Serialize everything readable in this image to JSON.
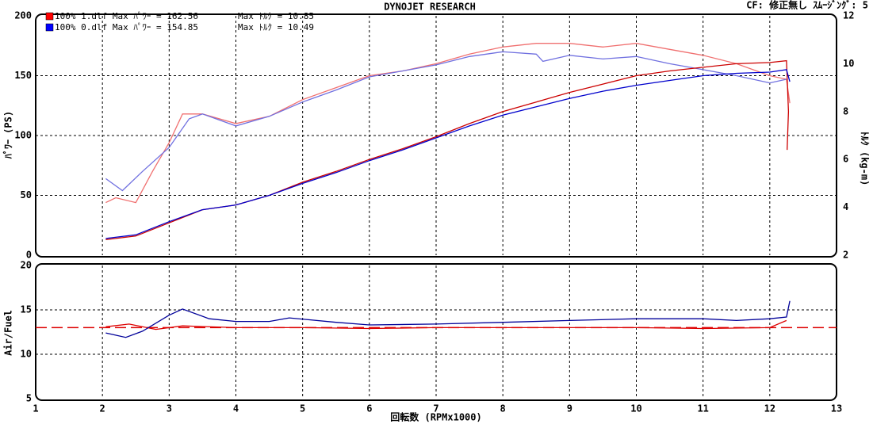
{
  "chart_data": [
    {
      "type": "line",
      "title": "DYNOJET  RESEARCH",
      "subtitle": "CF: 修正無し  ｽﾑｰｼﾞﾝｸﾞ: 5",
      "y_label": "ﾊﾟﾜｰ (PS)",
      "y2_label": "ﾄﾙｸ (kg-m)",
      "legend": [
        {
          "color": "#ff0000",
          "text": "100% 1.dlf Max ﾊﾟﾜｰ = 162.56",
          "text2": "Max ﾄﾙｸ = 10.85"
        },
        {
          "color": "#0000ff",
          "text": "100% 0.dlf Max ﾊﾟﾜｰ = 154.85",
          "text2": "Max ﾄﾙｸ = 10.49"
        }
      ],
      "xlim": [
        1,
        13
      ],
      "xticks": [
        1,
        2,
        3,
        4,
        5,
        6,
        7,
        8,
        9,
        10,
        11,
        12,
        13
      ],
      "ylim": [
        0,
        200
      ],
      "yticks": [
        0,
        50,
        100,
        150,
        200
      ],
      "y2lim": [
        2,
        12
      ],
      "y2ticks": [
        2,
        4,
        6,
        8,
        10,
        12
      ],
      "grid": true,
      "series": [
        {
          "color": "#f07070",
          "axis": "y2",
          "x": [
            2.05,
            2.2,
            2.5,
            2.75,
            3,
            3.2,
            3.5,
            4,
            4.5,
            5,
            5.5,
            6,
            6.5,
            7,
            7.5,
            8,
            8.5,
            9,
            9.5,
            10,
            10.5,
            11,
            11.5,
            12,
            12.25,
            12.3
          ],
          "values": [
            4.2,
            4.4,
            4.2,
            5.5,
            6.7,
            7.9,
            7.9,
            7.5,
            7.8,
            8.5,
            9.0,
            9.5,
            9.7,
            10.0,
            10.4,
            10.7,
            10.85,
            10.85,
            10.7,
            10.85,
            10.6,
            10.35,
            10.0,
            9.5,
            9.35,
            8.35
          ]
        },
        {
          "color": "#7070e0",
          "axis": "y2",
          "x": [
            2.05,
            2.3,
            2.6,
            3,
            3.3,
            3.5,
            4,
            4.5,
            5,
            5.5,
            6,
            6.5,
            7,
            7.5,
            8,
            8.5,
            8.6,
            9,
            9.5,
            10,
            10.5,
            11,
            11.5,
            12,
            12.25
          ],
          "values": [
            5.2,
            4.7,
            5.5,
            6.5,
            7.7,
            7.9,
            7.4,
            7.8,
            8.4,
            8.9,
            9.45,
            9.7,
            9.95,
            10.3,
            10.5,
            10.4,
            10.1,
            10.35,
            10.2,
            10.3,
            10.0,
            9.75,
            9.5,
            9.2,
            9.35
          ]
        },
        {
          "color": "#cc0000",
          "x": [
            2.05,
            2.5,
            3,
            3.5,
            4,
            4.5,
            5,
            5.5,
            6,
            6.5,
            7,
            7.5,
            8,
            8.5,
            9,
            9.5,
            10,
            10.5,
            11,
            11.5,
            12,
            12.25,
            12.28,
            12.26
          ],
          "values": [
            13,
            16,
            27,
            38,
            42,
            50,
            61,
            70,
            80,
            89,
            99,
            110,
            120,
            128,
            136,
            143,
            150,
            154,
            157,
            160,
            161,
            162.5,
            120,
            88
          ]
        },
        {
          "color": "#0000cc",
          "x": [
            2.05,
            2.5,
            3,
            3.5,
            4,
            4.5,
            5,
            5.5,
            6,
            6.5,
            7,
            7.5,
            8,
            8.5,
            9,
            9.5,
            10,
            10.5,
            11,
            11.5,
            12,
            12.25,
            12.3
          ],
          "values": [
            14,
            17,
            28,
            38,
            42,
            50,
            60,
            69,
            79,
            88,
            98,
            108,
            117,
            124,
            131,
            137,
            142,
            146,
            150,
            152,
            153,
            155,
            145
          ]
        }
      ]
    },
    {
      "type": "line",
      "y_label": "Air/Fuel",
      "x_label": "回転数 (RPMx1000)",
      "xlim": [
        1,
        13
      ],
      "xticks": [
        1,
        2,
        3,
        4,
        5,
        6,
        7,
        8,
        9,
        10,
        11,
        12,
        13
      ],
      "ylim": [
        5,
        20
      ],
      "yticks": [
        5,
        10,
        15,
        20
      ],
      "grid": true,
      "reference_line": 13,
      "reference_color": "#dd0000",
      "series": [
        {
          "color": "#dd0000",
          "x": [
            2.05,
            2.4,
            2.8,
            3.2,
            4,
            5,
            6,
            7,
            8,
            9,
            10,
            11,
            12,
            12.25
          ],
          "values": [
            13.1,
            13.4,
            12.8,
            13.2,
            13.0,
            13.0,
            12.9,
            13.0,
            13.0,
            13.0,
            13.0,
            12.9,
            13.0,
            13.8
          ]
        },
        {
          "color": "#000099",
          "x": [
            2.05,
            2.35,
            2.6,
            3,
            3.2,
            3.6,
            4,
            4.5,
            4.8,
            5.5,
            6,
            7,
            8,
            9,
            10,
            11,
            11.5,
            12,
            12.25,
            12.3
          ],
          "values": [
            12.4,
            11.9,
            12.6,
            14.4,
            15.1,
            14.0,
            13.7,
            13.7,
            14.1,
            13.6,
            13.3,
            13.4,
            13.6,
            13.8,
            14.0,
            14.0,
            13.8,
            14.0,
            14.2,
            16.0
          ]
        }
      ]
    }
  ]
}
